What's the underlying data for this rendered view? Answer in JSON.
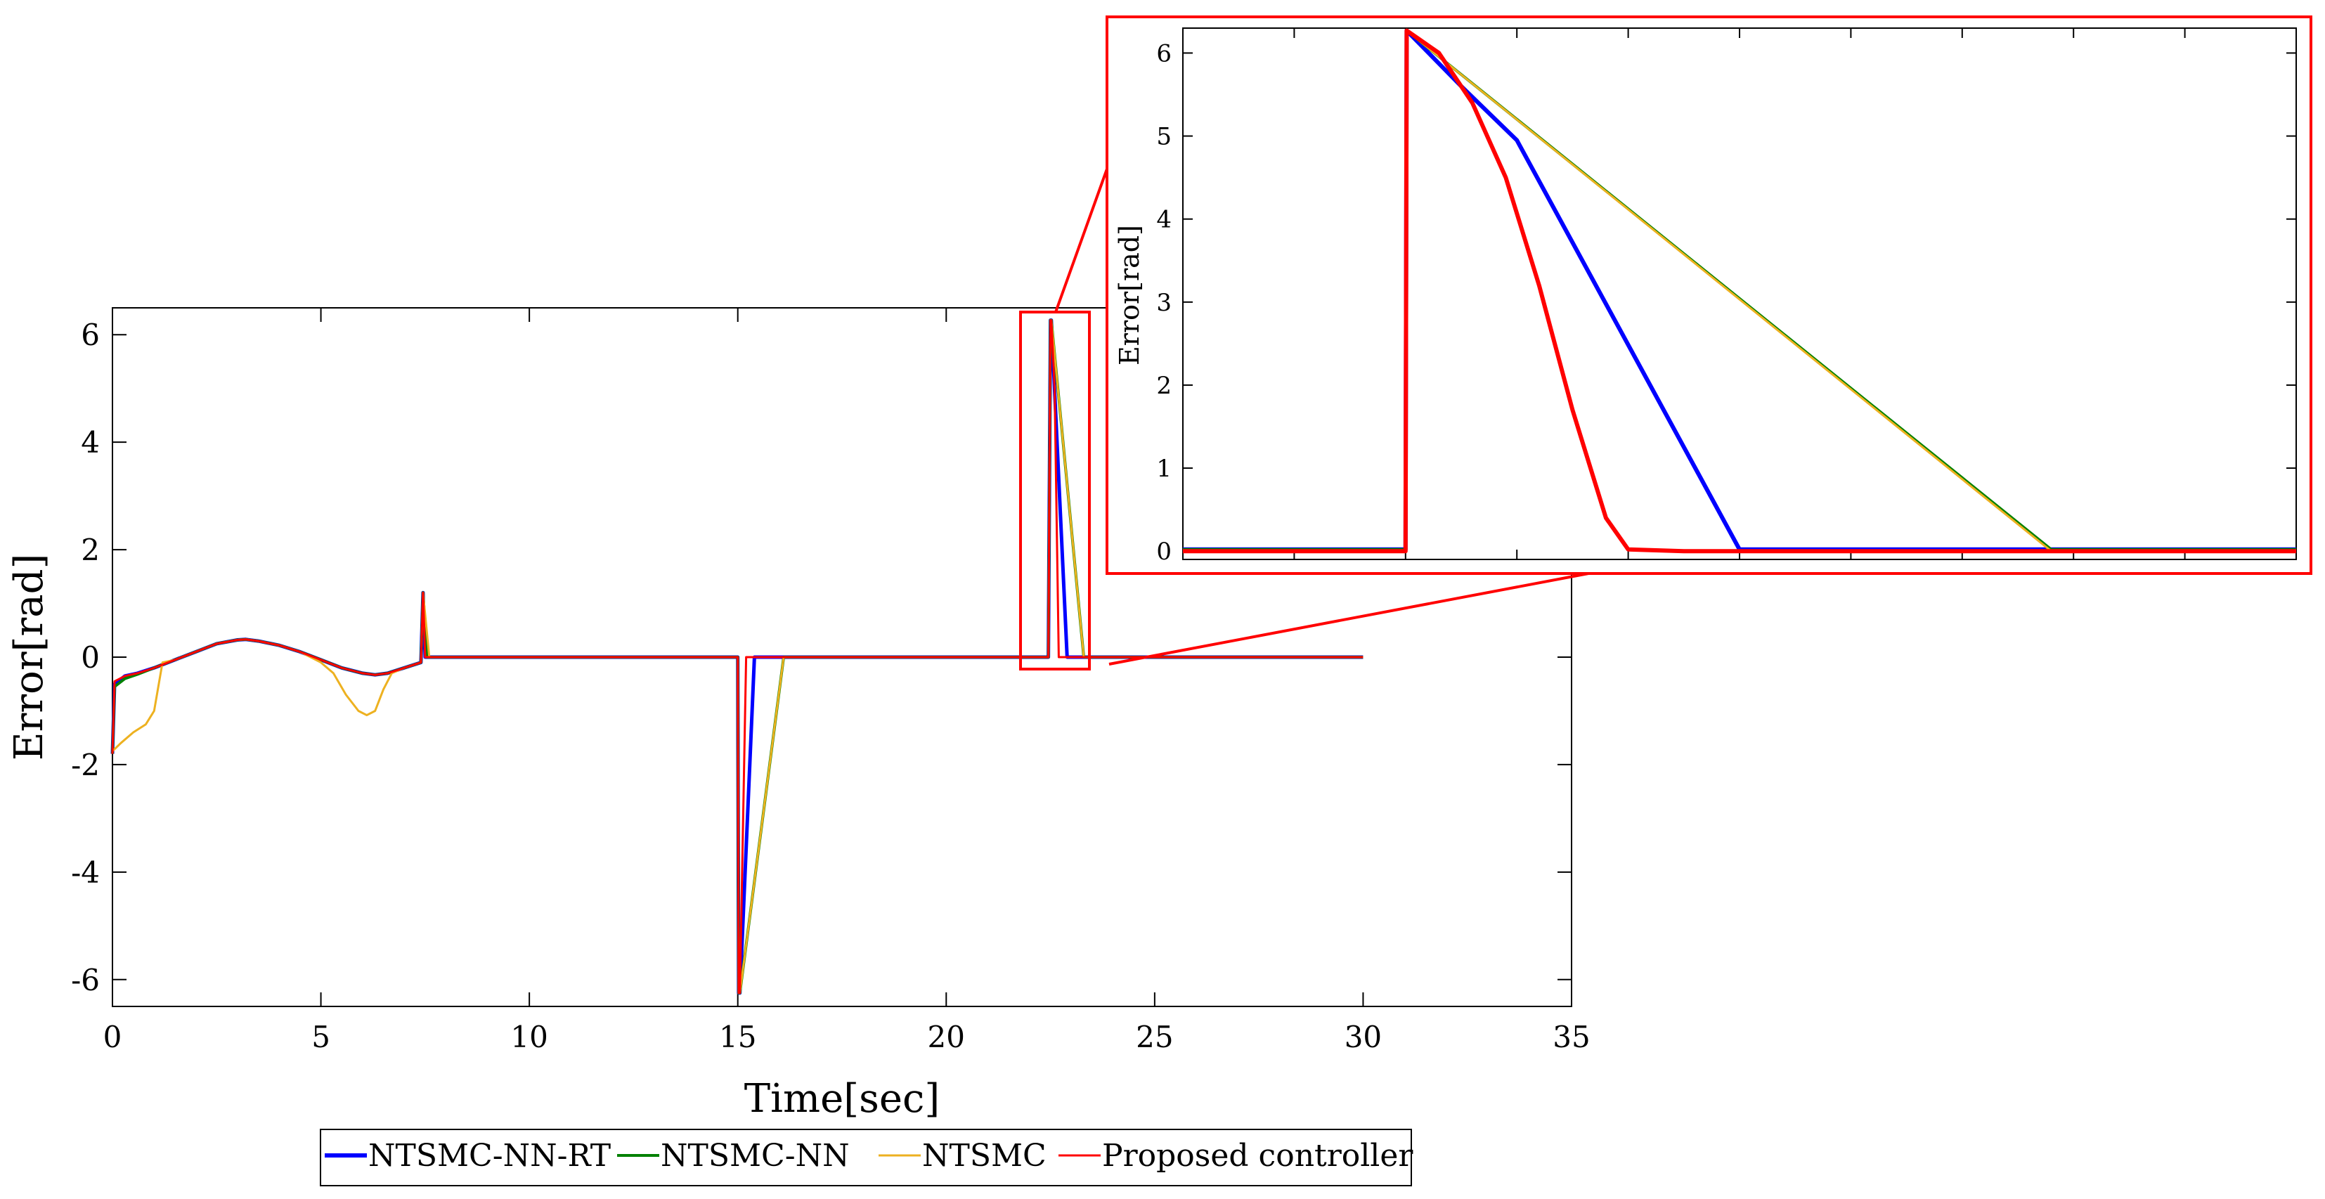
{
  "chart_data": [
    {
      "type": "line",
      "title": "",
      "xlabel": "Time[sec]",
      "ylabel": "Error[rad]",
      "xlim": [
        0,
        35
      ],
      "ylim": [
        -6.5,
        6.5
      ],
      "xticks": [
        "0",
        "5",
        "10",
        "15",
        "20",
        "25",
        "30",
        "35"
      ],
      "yticks": [
        "-6",
        "-4",
        "-2",
        "0",
        "2",
        "4",
        "6"
      ],
      "grid": false,
      "legend": {
        "placement": "bottom-outside",
        "orientation": "horizontal"
      },
      "series": [
        {
          "name": "NTSMC-NN-RT",
          "color": "#0000ff",
          "x": [
            0,
            0.05,
            0.3,
            0.6,
            1.0,
            1.5,
            2.0,
            2.5,
            3.0,
            3.2,
            3.5,
            4.0,
            4.5,
            5.0,
            5.5,
            6.0,
            6.3,
            6.6,
            7.0,
            7.4,
            7.45,
            7.5,
            7.7,
            10,
            15.0,
            15.02,
            15.05,
            15.4,
            17,
            20,
            22.45,
            22.5,
            22.52,
            22.9,
            25,
            28,
            30
          ],
          "y": [
            -1.8,
            -0.5,
            -0.35,
            -0.3,
            -0.2,
            -0.05,
            0.1,
            0.25,
            0.32,
            0.33,
            0.3,
            0.22,
            0.1,
            -0.05,
            -0.2,
            -0.3,
            -0.33,
            -0.3,
            -0.2,
            -0.1,
            1.2,
            0.0,
            0.0,
            0.0,
            0.0,
            -6.25,
            -6.25,
            0.0,
            0.0,
            0.0,
            0.0,
            6.27,
            6.27,
            0.0,
            0.0,
            0.0,
            0.0
          ]
        },
        {
          "name": "NTSMC-NN",
          "color": "#008000",
          "x": [
            0,
            0.05,
            0.3,
            0.6,
            1.0,
            1.5,
            2.0,
            2.5,
            3.0,
            3.2,
            3.5,
            4.0,
            4.5,
            5.0,
            5.5,
            6.0,
            6.3,
            6.6,
            7.0,
            7.4,
            7.45,
            7.55,
            7.8,
            10,
            15.0,
            15.02,
            15.05,
            16.1,
            18,
            20,
            22.45,
            22.5,
            22.52,
            23.3,
            25,
            28,
            30
          ],
          "y": [
            -1.8,
            -0.55,
            -0.4,
            -0.32,
            -0.2,
            -0.05,
            0.1,
            0.25,
            0.32,
            0.33,
            0.3,
            0.22,
            0.1,
            -0.05,
            -0.2,
            -0.3,
            -0.33,
            -0.3,
            -0.2,
            -0.1,
            1.2,
            0.0,
            0.0,
            0.0,
            0.0,
            -6.25,
            -6.25,
            0.0,
            0.0,
            0.0,
            0.0,
            6.27,
            6.27,
            0.0,
            0.0,
            0.0,
            0.0
          ]
        },
        {
          "name": "NTSMC",
          "color": "#edb120",
          "x": [
            0,
            0.2,
            0.5,
            0.8,
            1.0,
            1.2,
            1.5,
            2.0,
            2.5,
            3.0,
            3.2,
            3.5,
            4.0,
            4.5,
            5.0,
            5.3,
            5.6,
            5.9,
            6.1,
            6.3,
            6.5,
            6.7,
            7.0,
            7.4,
            7.45,
            7.6,
            7.8,
            10,
            15.0,
            15.02,
            15.05,
            16.1,
            18,
            20,
            22.45,
            22.5,
            22.52,
            23.3,
            25,
            28,
            30
          ],
          "y": [
            -1.75,
            -1.6,
            -1.4,
            -1.25,
            -1.0,
            -0.1,
            -0.05,
            0.1,
            0.25,
            0.32,
            0.33,
            0.3,
            0.22,
            0.1,
            -0.1,
            -0.3,
            -0.7,
            -1.0,
            -1.08,
            -1.0,
            -0.6,
            -0.3,
            -0.2,
            -0.1,
            1.2,
            0.0,
            0.0,
            0.0,
            0.0,
            -6.25,
            -6.25,
            0.0,
            0.0,
            0.0,
            0.0,
            6.27,
            6.27,
            0.0,
            0.0,
            0.0,
            0.0
          ]
        },
        {
          "name": "Proposed controller",
          "color": "#ff0000",
          "x": [
            0,
            0.05,
            0.3,
            0.6,
            1.0,
            1.5,
            2.0,
            2.5,
            3.0,
            3.2,
            3.5,
            4.0,
            4.5,
            5.0,
            5.5,
            6.0,
            6.3,
            6.6,
            7.0,
            7.4,
            7.45,
            7.5,
            7.7,
            10,
            15.0,
            15.02,
            15.05,
            15.2,
            17,
            20,
            22.45,
            22.5,
            22.52,
            22.6,
            22.7,
            25,
            28,
            30
          ],
          "y": [
            -1.8,
            -0.45,
            -0.35,
            -0.3,
            -0.2,
            -0.05,
            0.1,
            0.25,
            0.32,
            0.33,
            0.3,
            0.22,
            0.1,
            -0.05,
            -0.2,
            -0.3,
            -0.33,
            -0.3,
            -0.2,
            -0.1,
            1.2,
            0.0,
            0.0,
            0.0,
            0.0,
            -6.25,
            -6.25,
            0.0,
            0.0,
            0.0,
            0.0,
            6.27,
            6.27,
            5.0,
            0.0,
            0.0,
            0.0,
            0.0
          ]
        }
      ]
    },
    {
      "type": "line",
      "title": "",
      "xlabel": "",
      "ylabel": "Error[rad]",
      "xlim": [
        22.4,
        23.4
      ],
      "ylim": [
        -0.1,
        6.3
      ],
      "yticks": [
        "0",
        "1",
        "2",
        "3",
        "4",
        "5",
        "6"
      ],
      "grid": false,
      "series": [
        {
          "name": "NTSMC-NN-RT",
          "color": "#0000ff",
          "x": [
            22.4,
            22.6,
            22.601,
            22.65,
            22.7,
            22.9,
            23.4
          ],
          "y": [
            0.02,
            0.02,
            6.27,
            5.6,
            4.95,
            0.02,
            0.02
          ]
        },
        {
          "name": "NTSMC-NN",
          "color": "#008000",
          "x": [
            22.4,
            22.6,
            22.601,
            23.18,
            23.4
          ],
          "y": [
            0.02,
            0.02,
            6.27,
            0.02,
            0.02
          ]
        },
        {
          "name": "NTSMC",
          "color": "#edb120",
          "x": [
            22.4,
            22.6,
            22.601,
            23.18,
            23.4
          ],
          "y": [
            0.0,
            0.0,
            6.27,
            0.0,
            0.0
          ]
        },
        {
          "name": "Proposed controller",
          "color": "#ff0000",
          "x": [
            22.4,
            22.6,
            22.601,
            22.63,
            22.66,
            22.69,
            22.72,
            22.75,
            22.78,
            22.8,
            22.85,
            23.4
          ],
          "y": [
            0.0,
            0.0,
            6.27,
            6.0,
            5.4,
            4.5,
            3.2,
            1.7,
            0.4,
            0.02,
            0.0,
            0.0
          ]
        }
      ]
    }
  ]
}
